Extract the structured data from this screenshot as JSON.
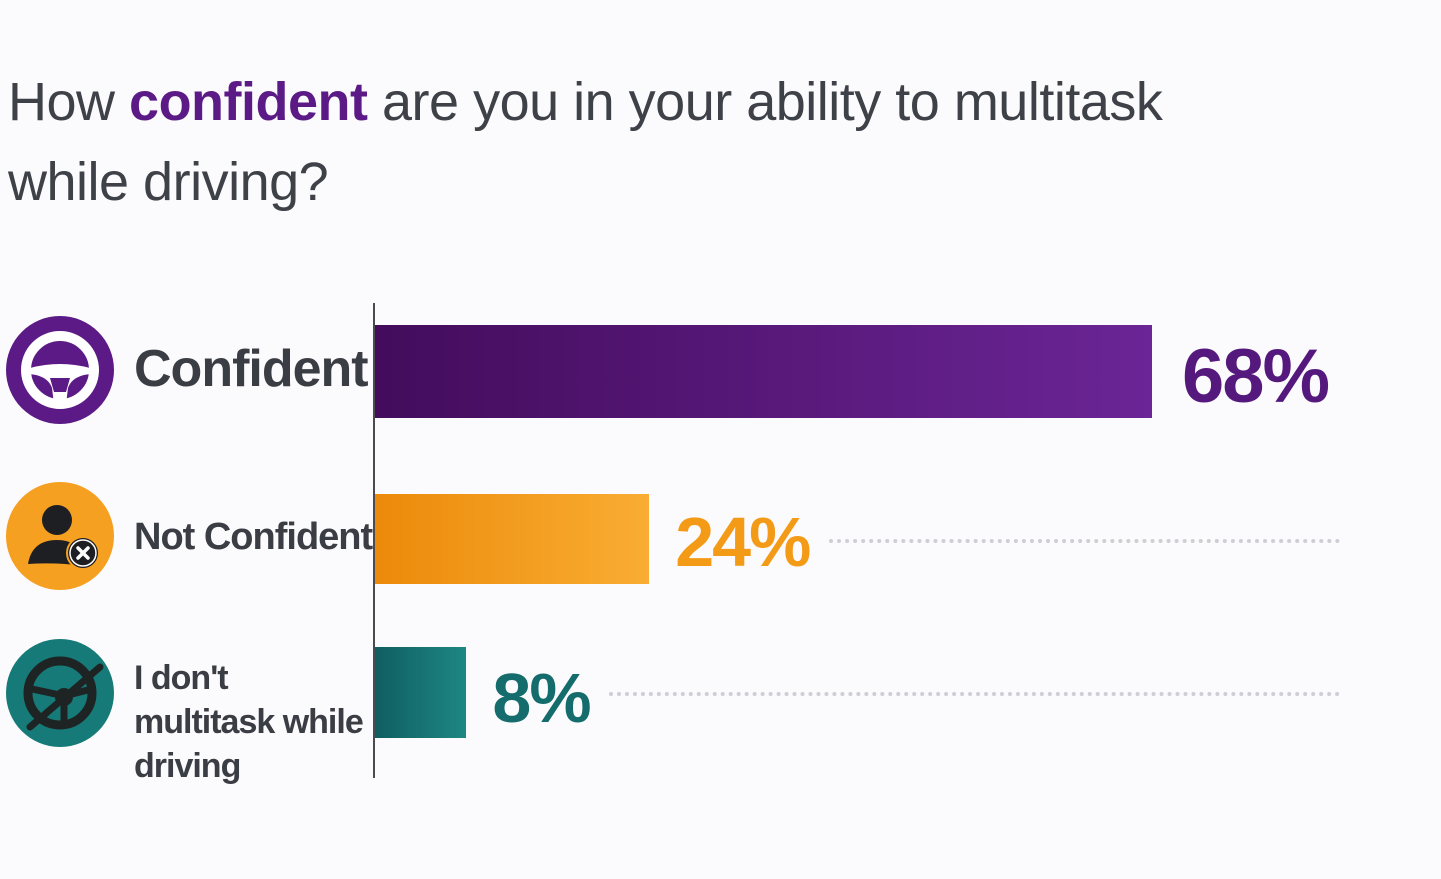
{
  "title": {
    "before": "How ",
    "emphasis": "confident",
    "after": " are you in your ability to multitask while driving?"
  },
  "chart_data": {
    "type": "bar",
    "orientation": "horizontal",
    "categories": [
      "Confident",
      "Not Confident",
      "I don't multitask while driving"
    ],
    "values": [
      68,
      24,
      8
    ],
    "value_labels": [
      "68%",
      "24%",
      "8%"
    ],
    "unit": "%",
    "colors": [
      "#5b1a86",
      "#f5a020",
      "#167a78"
    ],
    "icons": [
      "steering-wheel-icon",
      "user-x-icon",
      "no-steering-wheel-icon"
    ],
    "grid": false
  }
}
